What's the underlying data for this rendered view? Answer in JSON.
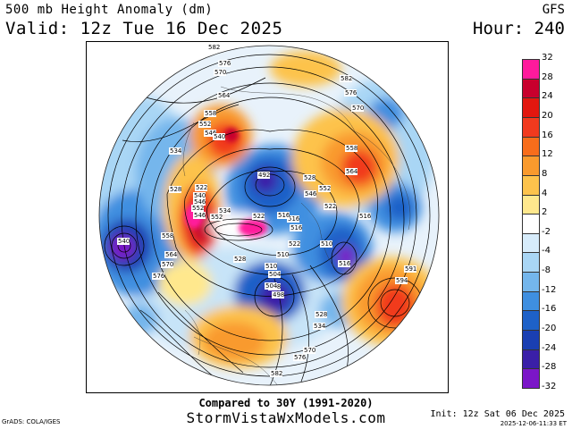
{
  "header": {
    "title": "500 mb Height Anomaly (dm)",
    "valid": "Valid: 12z Tue 16 Dec 2025",
    "model": "GFS",
    "hour": "Hour: 240"
  },
  "footer": {
    "compared": "Compared to 30Y (1991-2020)",
    "site": "StormVistaWxModels.com",
    "credit": "GrADS: COLA/IGES",
    "init": "Init: 12z Sat 06 Dec 2025",
    "timestamp": "2025-12-06-11:33 ET"
  },
  "colorbar": {
    "ticks": [
      "32",
      "28",
      "24",
      "20",
      "16",
      "12",
      "8",
      "4",
      "2",
      "-2",
      "-4",
      "-8",
      "-12",
      "-16",
      "-20",
      "-24",
      "-28",
      "-32"
    ],
    "colors": [
      "#ff1a9c",
      "#c8002d",
      "#e2170f",
      "#f13a1e",
      "#f76d1b",
      "#f99a2d",
      "#fdc34c",
      "#ffe88d",
      "#ffffff",
      "#d7ecfb",
      "#a9d6f5",
      "#74b6ec",
      "#3f8fe0",
      "#1e61c8",
      "#1a3fb2",
      "#3a1fa8",
      "#7b16c8"
    ]
  },
  "contour_labels": [
    "582",
    "576",
    "570",
    "564",
    "558",
    "552",
    "546",
    "540",
    "534",
    "528",
    "522",
    "516",
    "510",
    "504",
    "498",
    "492",
    "582",
    "576",
    "570",
    "558",
    "564",
    "552",
    "546",
    "540",
    "528",
    "534",
    "522",
    "516",
    "510",
    "504",
    "498",
    "540",
    "546",
    "552",
    "558",
    "564",
    "570",
    "576",
    "591",
    "594",
    "516",
    "522",
    "528",
    "534",
    "570",
    "576",
    "582",
    "522",
    "516",
    "528",
    "546",
    "552",
    "510",
    "516"
  ]
}
